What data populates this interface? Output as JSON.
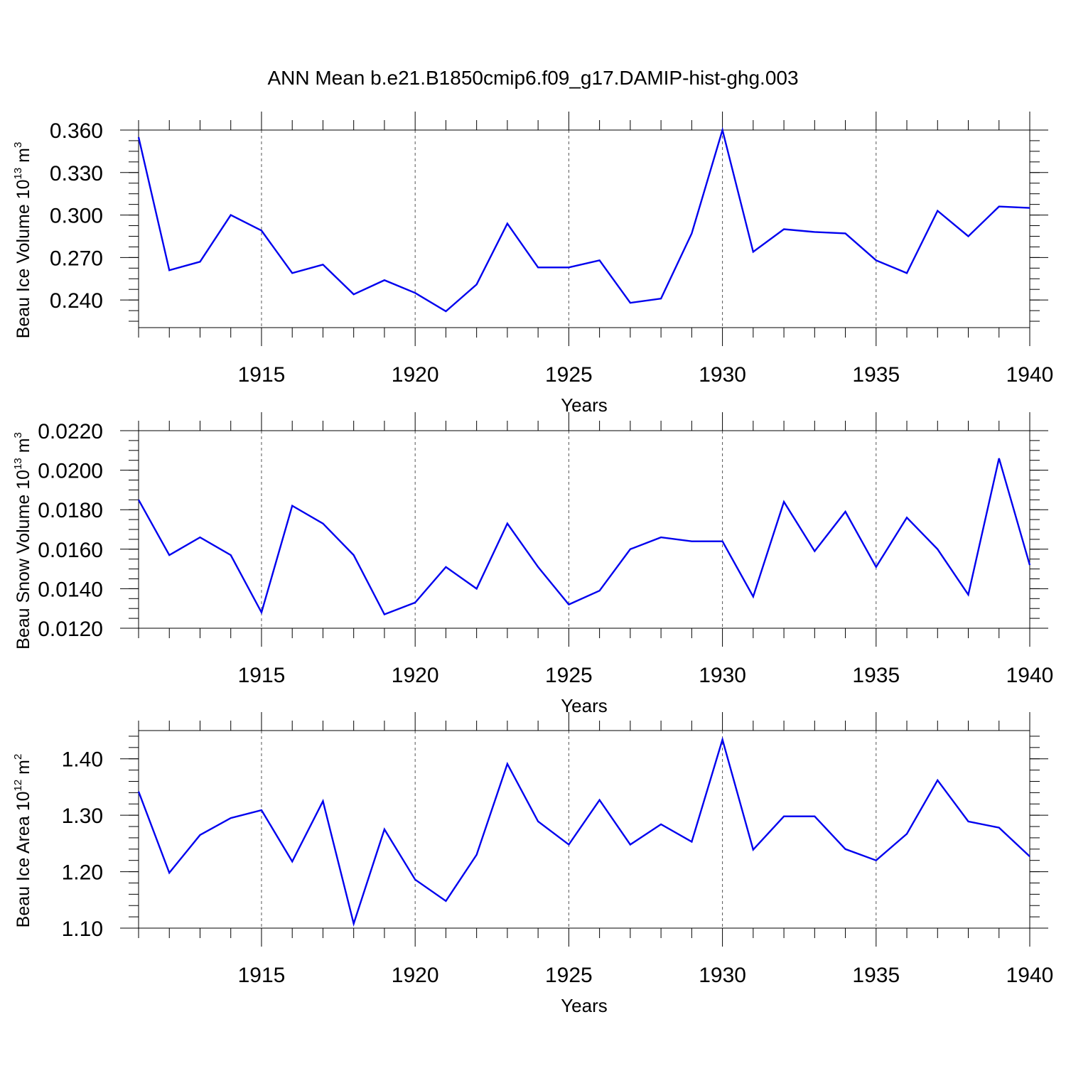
{
  "title": "ANN Mean b.e21.B1850cmip6.f09_g17.DAMIP-hist-ghg.003",
  "colors": {
    "series": "#0000ee",
    "axes": "#000000",
    "grid": "#555555"
  },
  "chart_data": [
    {
      "type": "line",
      "xlabel": "Years",
      "ylabel": {
        "text": "Beau Ice Volume 10",
        "exponent": "13",
        "unit": " m",
        "unit_exponent": "3"
      },
      "xlim": [
        1911,
        1940
      ],
      "ylim": [
        0.2205,
        0.36
      ],
      "xticks": [
        1915,
        1920,
        1925,
        1930,
        1935,
        1940
      ],
      "yticks": [
        0.24,
        0.27,
        0.3,
        0.33,
        0.36
      ],
      "ytick_labels": [
        "0.240",
        "0.270",
        "0.300",
        "0.330",
        "0.360"
      ],
      "grid": "vertical dashed at major x ticks",
      "x": [
        1911,
        1912,
        1913,
        1914,
        1915,
        1916,
        1917,
        1918,
        1919,
        1920,
        1921,
        1922,
        1923,
        1924,
        1925,
        1926,
        1927,
        1928,
        1929,
        1930,
        1931,
        1932,
        1933,
        1934,
        1935,
        1936,
        1937,
        1938,
        1939,
        1940
      ],
      "values": [
        0.355,
        0.261,
        0.267,
        0.3,
        0.289,
        0.259,
        0.265,
        0.244,
        0.254,
        0.245,
        0.232,
        0.251,
        0.294,
        0.263,
        0.263,
        0.268,
        0.238,
        0.241,
        0.287,
        0.36,
        0.274,
        0.29,
        0.288,
        0.287,
        0.268,
        0.259,
        0.303,
        0.285,
        0.306,
        0.305
      ]
    },
    {
      "type": "line",
      "xlabel": "Years",
      "ylabel": {
        "text": "Beau Snow Volume 10",
        "exponent": "13",
        "unit": " m",
        "unit_exponent": "3"
      },
      "xlim": [
        1911,
        1940
      ],
      "ylim": [
        0.012,
        0.022
      ],
      "xticks": [
        1915,
        1920,
        1925,
        1930,
        1935,
        1940
      ],
      "yticks": [
        0.012,
        0.014,
        0.016,
        0.018,
        0.02,
        0.022
      ],
      "ytick_labels": [
        "0.0120",
        "0.0140",
        "0.0160",
        "0.0180",
        "0.0200",
        "0.0220"
      ],
      "grid": "vertical dashed at major x ticks",
      "x": [
        1911,
        1912,
        1913,
        1914,
        1915,
        1916,
        1917,
        1918,
        1919,
        1920,
        1921,
        1922,
        1923,
        1924,
        1925,
        1926,
        1927,
        1928,
        1929,
        1930,
        1931,
        1932,
        1933,
        1934,
        1935,
        1936,
        1937,
        1938,
        1939,
        1940
      ],
      "values": [
        0.0185,
        0.0157,
        0.0166,
        0.0157,
        0.0128,
        0.0182,
        0.0173,
        0.0157,
        0.0127,
        0.0133,
        0.0151,
        0.014,
        0.0173,
        0.0151,
        0.0132,
        0.0139,
        0.016,
        0.0166,
        0.0164,
        0.0164,
        0.0136,
        0.0184,
        0.0159,
        0.0179,
        0.0151,
        0.0176,
        0.016,
        0.0137,
        0.0206,
        0.0152
      ]
    },
    {
      "type": "line",
      "xlabel": "Years",
      "ylabel": {
        "text": "Beau Ice Area 10",
        "exponent": "12",
        "unit": " m",
        "unit_exponent": "2"
      },
      "xlim": [
        1911,
        1940
      ],
      "ylim": [
        1.1,
        1.45
      ],
      "xticks": [
        1915,
        1920,
        1925,
        1930,
        1935,
        1940
      ],
      "yticks": [
        1.1,
        1.2,
        1.3,
        1.4
      ],
      "ytick_labels": [
        "1.10",
        "1.20",
        "1.30",
        "1.40"
      ],
      "grid": "vertical dashed at major x ticks",
      "x": [
        1911,
        1912,
        1913,
        1914,
        1915,
        1916,
        1917,
        1918,
        1919,
        1920,
        1921,
        1922,
        1923,
        1924,
        1925,
        1926,
        1927,
        1928,
        1929,
        1930,
        1931,
        1932,
        1933,
        1934,
        1935,
        1936,
        1937,
        1938,
        1939,
        1940
      ],
      "values": [
        1.342,
        1.198,
        1.265,
        1.295,
        1.309,
        1.218,
        1.325,
        1.108,
        1.275,
        1.186,
        1.148,
        1.23,
        1.391,
        1.289,
        1.248,
        1.327,
        1.248,
        1.284,
        1.253,
        1.434,
        1.239,
        1.298,
        1.298,
        1.24,
        1.22,
        1.267,
        1.362,
        1.289,
        1.278,
        1.227
      ]
    }
  ]
}
